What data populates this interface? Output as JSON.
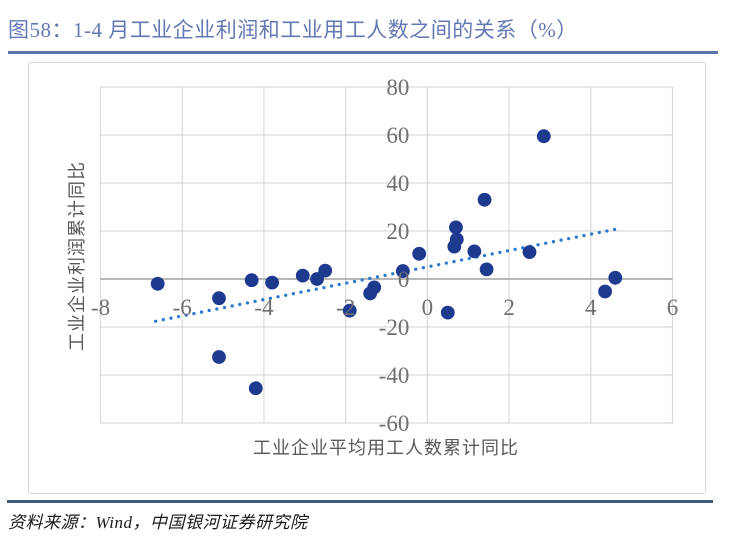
{
  "figure": {
    "title": "图58：1-4 月工业企业利润和工业用工人数之间的关系（%）"
  },
  "footer": {
    "source": "资料来源：Wind，中国银河证券研究院"
  },
  "colors": {
    "title_blue": "#6378b4",
    "rule_blue": "#5b74ae",
    "footer_rule_navy": "#405a7c",
    "point_navy": "#1d3a8f",
    "trend_blue": "#2b7ad0",
    "grid_gray": "#d9d9d9",
    "zero_axis_gray": "#a0a0a0",
    "tick_text_gray": "#6f6f6f",
    "box_border_gray": "#d6d6d6"
  },
  "chart_data": {
    "type": "scatter",
    "title": "",
    "xlabel": "工业企业平均用工人数累计同比",
    "ylabel": "工业企业利润累计同比",
    "xlim": [
      -8,
      6
    ],
    "ylim": [
      -60,
      80
    ],
    "x_ticks": [
      -8,
      -6,
      -4,
      -2,
      0,
      2,
      4,
      6
    ],
    "y_ticks": [
      -60,
      -40,
      -20,
      0,
      20,
      40,
      60,
      80
    ],
    "grid": true,
    "legend": "none",
    "series": [
      {
        "name": "scatter-points",
        "type": "scatter",
        "color": "#1d3a8f",
        "points": [
          [
            -6.6,
            -2
          ],
          [
            -5.1,
            -8
          ],
          [
            -5.1,
            -32.5
          ],
          [
            -4.3,
            -0.5
          ],
          [
            -4.2,
            -45.5
          ],
          [
            -3.8,
            -1.5
          ],
          [
            -3.05,
            1.4
          ],
          [
            -2.7,
            0
          ],
          [
            -2.5,
            3.5
          ],
          [
            -1.9,
            -13.2
          ],
          [
            -1.4,
            -6
          ],
          [
            -1.3,
            -3.5
          ],
          [
            -0.6,
            3.3
          ],
          [
            -0.2,
            10.5
          ],
          [
            0.5,
            -14
          ],
          [
            0.66,
            13.5
          ],
          [
            0.72,
            16.5
          ],
          [
            0.7,
            21.5
          ],
          [
            1.15,
            11.5
          ],
          [
            1.4,
            33
          ],
          [
            1.45,
            4
          ],
          [
            2.5,
            11.2
          ],
          [
            2.85,
            59.5
          ],
          [
            4.35,
            -5.2
          ],
          [
            4.6,
            0.5
          ]
        ]
      },
      {
        "name": "trend-line",
        "type": "dotted-line",
        "color": "#2b7ad0",
        "points": [
          [
            -6.65,
            -17.6
          ],
          [
            4.6,
            20.7
          ]
        ]
      }
    ]
  }
}
